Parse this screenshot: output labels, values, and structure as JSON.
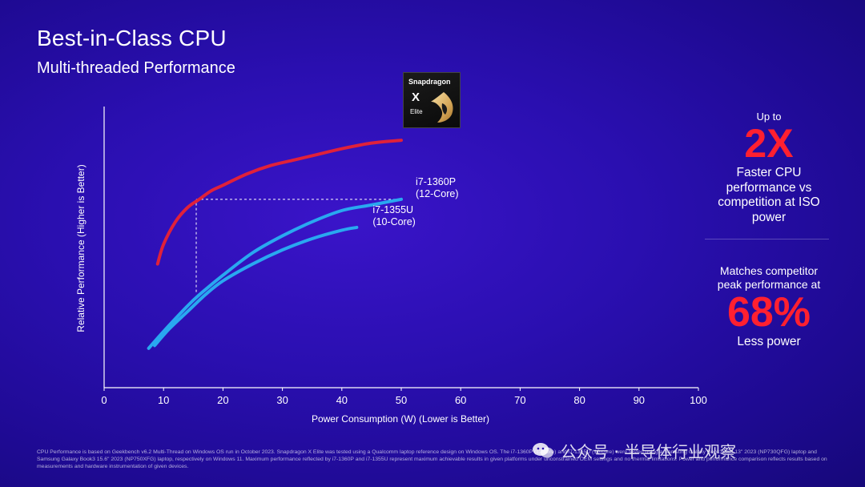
{
  "header": {
    "title": "Best-in-Class CPU",
    "subtitle": "Multi-threaded Performance"
  },
  "badge": {
    "brand": "Snapdragon",
    "model_letter": "X",
    "model_name": "Elite"
  },
  "side_panel": {
    "upto_label": "Up to",
    "multiplier": "2X",
    "faster_lines": [
      "Faster CPU",
      "performance vs",
      "competition at ISO",
      "power"
    ],
    "matches_lines": [
      "Matches competitor",
      "peak performance at"
    ],
    "percent": "68%",
    "less_power": "Less power"
  },
  "footnote": "CPU Performance is based on Geekbench v6.2 Multi-Thread on Windows OS run in October 2023. Snapdragon X Elite was tested using a Qualcomm laptop reference design on Windows OS. The i7-1360P (12-core) and i7-1355U (10-core) were tested using a Samsung Galaxy Book3 360 13\" 2023 (NP730QFG) laptop and Samsung Galaxy Book3 15.6\" 2023 (NP750XFG) laptop, respectively on Windows 11. Maximum performance reflected by i7-1360P and i7-1355U represent maximum achievable results in given platforms under unconstrained OEM settings and no thermal limitations. Power and performance comparison reflects results based on measurements and hardware instrumentation of given devices.",
  "watermark": "公众号 · 半导体行业观察",
  "colors": {
    "snapdragon_curve": "#e0213a",
    "intel_curves": "#29a8f0",
    "accent_red": "#ff2030"
  },
  "chart_data": {
    "type": "line",
    "xlabel": "Power Consumption (W)  (Lower is Better)",
    "ylabel": "Relative Performance  (Higher is Better)",
    "xlim": [
      0,
      100
    ],
    "x_ticks": [
      "0",
      "10",
      "20",
      "30",
      "40",
      "50",
      "60",
      "70",
      "80",
      "90",
      "100"
    ],
    "y_ticks_shown": false,
    "ylim": [
      0,
      1
    ],
    "series": [
      {
        "name": "Snapdragon X Elite",
        "color": "#e0213a",
        "x": [
          9,
          10,
          12,
          14,
          16,
          18,
          20,
          24,
          28,
          32,
          36,
          40,
          45,
          50
        ],
        "y": [
          0.44,
          0.51,
          0.59,
          0.64,
          0.67,
          0.7,
          0.72,
          0.76,
          0.79,
          0.81,
          0.83,
          0.85,
          0.87,
          0.88
        ]
      },
      {
        "name": "i7-1360P\n(12-Core)",
        "color": "#29a8f0",
        "x": [
          7.5,
          10,
          14,
          16,
          20,
          25,
          30,
          35,
          40,
          45,
          50
        ],
        "y": [
          0.14,
          0.2,
          0.29,
          0.33,
          0.4,
          0.48,
          0.54,
          0.59,
          0.63,
          0.65,
          0.67
        ]
      },
      {
        "name": "i7-1355U\n(10-Core)",
        "color": "#29a8f0",
        "x": [
          8.5,
          11,
          14,
          17,
          20,
          25,
          30,
          35,
          40,
          42.5
        ],
        "y": [
          0.15,
          0.21,
          0.27,
          0.33,
          0.38,
          0.44,
          0.49,
          0.53,
          0.56,
          0.57
        ]
      }
    ],
    "annotations": [
      {
        "type": "iso-power-guide",
        "x": 15.5,
        "y_from": 0.34,
        "y_to": 0.67,
        "x_to": 50
      }
    ]
  }
}
